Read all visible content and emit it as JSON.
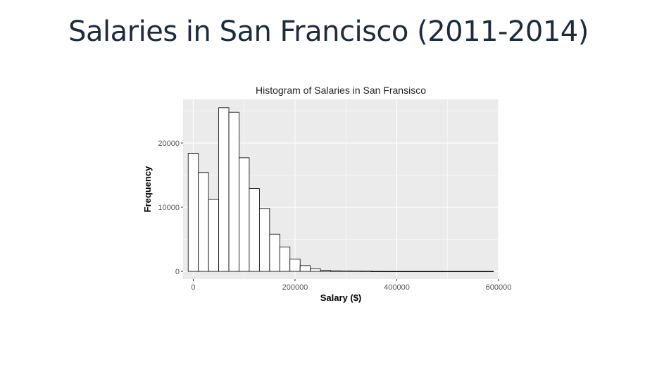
{
  "slide": {
    "title": "Salaries in San Francisco (2011-2014)"
  },
  "chart_data": {
    "type": "bar",
    "subtype": "histogram",
    "title": "Histogram of Salaries in San Fransisco",
    "xlabel": "Salary ($)",
    "ylabel": "Frequency",
    "xlim": [
      -20000,
      600000
    ],
    "ylim": [
      -1200,
      26800
    ],
    "x_ticks": [
      0,
      200000,
      400000,
      600000
    ],
    "x_tick_labels": [
      "0",
      "200000",
      "400000",
      "600000"
    ],
    "y_ticks": [
      0,
      10000,
      20000
    ],
    "y_tick_labels": [
      "0",
      "10000",
      "20000"
    ],
    "bin_width": 20000,
    "bin_starts": [
      -10000,
      10000,
      30000,
      50000,
      70000,
      90000,
      110000,
      130000,
      150000,
      170000,
      190000,
      210000,
      230000,
      250000,
      270000,
      290000,
      310000,
      330000,
      350000,
      370000,
      390000,
      410000,
      430000,
      450000,
      470000,
      490000,
      510000,
      530000,
      550000,
      570000
    ],
    "values": [
      18400,
      15400,
      11200,
      25500,
      24800,
      17700,
      12900,
      9800,
      5800,
      3800,
      1900,
      900,
      400,
      150,
      80,
      60,
      50,
      40,
      10,
      5,
      5,
      5,
      5,
      5,
      5,
      5,
      5,
      5,
      5,
      5
    ],
    "colors": {
      "panel_background": "#ebebeb",
      "grid_major": "#ffffff",
      "bar_fill": "#ffffff",
      "bar_stroke": "#000000"
    },
    "grid": true,
    "legend": "none"
  }
}
